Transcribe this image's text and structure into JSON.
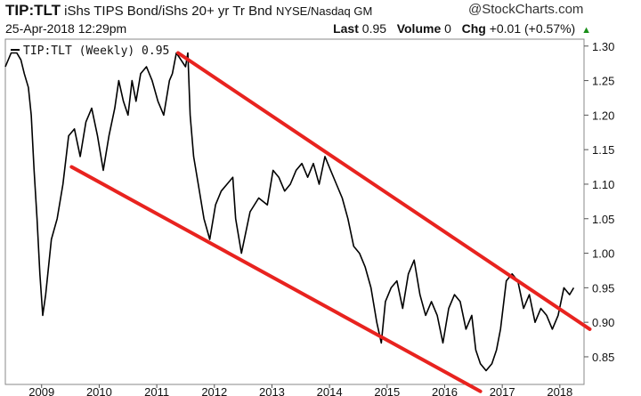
{
  "header": {
    "symbol": "TIP:TLT",
    "description": "iShs TIPS Bond/iShs 20+ yr Tr Bnd",
    "exchange": "NYSE/Nasdaq GM",
    "brand": "@StockCharts.com",
    "date": "25-Apr-2018 12:29pm",
    "last_label": "Last",
    "last_value": "0.95",
    "volume_label": "Volume",
    "volume_value": "0",
    "chg_label": "Chg",
    "chg_value": "+0.01 (+0.57%)",
    "chg_arrow": "▲"
  },
  "chart_data": {
    "type": "line",
    "title": "",
    "legend": "TIP:TLT (Weekly) 0.95",
    "legend_position": "top-left",
    "xlabel": "",
    "ylabel": "",
    "y_axis_side": "right",
    "ylim": [
      0.81,
      1.31
    ],
    "xlim": [
      2008.45,
      2018.5
    ],
    "y_ticks": [
      "1.30",
      "1.25",
      "1.20",
      "1.15",
      "1.10",
      "1.05",
      "1.00",
      "0.95",
      "0.90",
      "0.85"
    ],
    "x_ticks": [
      "2009",
      "2010",
      "2011",
      "2012",
      "2013",
      "2014",
      "2015",
      "2016",
      "2017",
      "2018"
    ],
    "grid": false,
    "colors": {
      "series": "#000000",
      "trendlines": "#e8231f"
    },
    "series": [
      {
        "x": [
          2008.45,
          2008.55,
          2008.65,
          2008.72,
          2008.78,
          2008.85,
          2008.9,
          2008.95,
          2009.0,
          2009.05,
          2009.1,
          2009.15,
          2009.25,
          2009.35,
          2009.45,
          2009.55,
          2009.65,
          2009.75,
          2009.85,
          2009.95,
          2010.05,
          2010.15,
          2010.25,
          2010.35,
          2010.42,
          2010.5,
          2010.58,
          2010.65,
          2010.72,
          2010.8,
          2010.9,
          2011.0,
          2011.1,
          2011.2,
          2011.3,
          2011.35,
          2011.42,
          2011.5,
          2011.58,
          2011.62,
          2011.66,
          2011.72,
          2011.8,
          2011.9,
          2012.0,
          2012.1,
          2012.2,
          2012.3,
          2012.4,
          2012.45,
          2012.55,
          2012.7,
          2012.85,
          2013.0,
          2013.1,
          2013.2,
          2013.3,
          2013.4,
          2013.5,
          2013.6,
          2013.7,
          2013.8,
          2013.9,
          2014.0,
          2014.1,
          2014.2,
          2014.3,
          2014.4,
          2014.5,
          2014.6,
          2014.7,
          2014.8,
          2014.9,
          2014.98,
          2015.05,
          2015.15,
          2015.25,
          2015.35,
          2015.45,
          2015.55,
          2015.65,
          2015.75,
          2015.85,
          2015.95,
          2016.05,
          2016.15,
          2016.25,
          2016.35,
          2016.45,
          2016.55,
          2016.62,
          2016.7,
          2016.8,
          2016.9,
          2016.98,
          2017.05,
          2017.15,
          2017.25,
          2017.35,
          2017.45,
          2017.55,
          2017.65,
          2017.75,
          2017.85,
          2017.95,
          2018.05,
          2018.15,
          2018.25,
          2018.32
        ],
        "y": [
          1.27,
          1.29,
          1.29,
          1.28,
          1.26,
          1.24,
          1.2,
          1.12,
          1.05,
          0.97,
          0.91,
          0.94,
          1.02,
          1.05,
          1.1,
          1.17,
          1.18,
          1.14,
          1.19,
          1.21,
          1.17,
          1.12,
          1.17,
          1.21,
          1.25,
          1.22,
          1.2,
          1.25,
          1.22,
          1.26,
          1.27,
          1.25,
          1.22,
          1.2,
          1.25,
          1.26,
          1.29,
          1.28,
          1.27,
          1.29,
          1.2,
          1.14,
          1.1,
          1.05,
          1.02,
          1.07,
          1.09,
          1.1,
          1.11,
          1.05,
          1.0,
          1.06,
          1.08,
          1.07,
          1.12,
          1.11,
          1.09,
          1.1,
          1.12,
          1.13,
          1.11,
          1.13,
          1.1,
          1.14,
          1.12,
          1.1,
          1.08,
          1.05,
          1.01,
          1.0,
          0.98,
          0.95,
          0.9,
          0.87,
          0.93,
          0.95,
          0.96,
          0.92,
          0.97,
          0.99,
          0.94,
          0.91,
          0.93,
          0.91,
          0.87,
          0.92,
          0.94,
          0.93,
          0.89,
          0.91,
          0.86,
          0.84,
          0.83,
          0.84,
          0.86,
          0.89,
          0.96,
          0.97,
          0.96,
          0.92,
          0.94,
          0.9,
          0.92,
          0.91,
          0.89,
          0.91,
          0.95,
          0.94,
          0.95
        ]
      }
    ],
    "trendlines": [
      {
        "x": [
          2011.45,
          2018.6
        ],
        "y": [
          1.29,
          0.89
        ]
      },
      {
        "x": [
          2009.6,
          2016.7
        ],
        "y": [
          1.125,
          0.8
        ]
      }
    ]
  }
}
